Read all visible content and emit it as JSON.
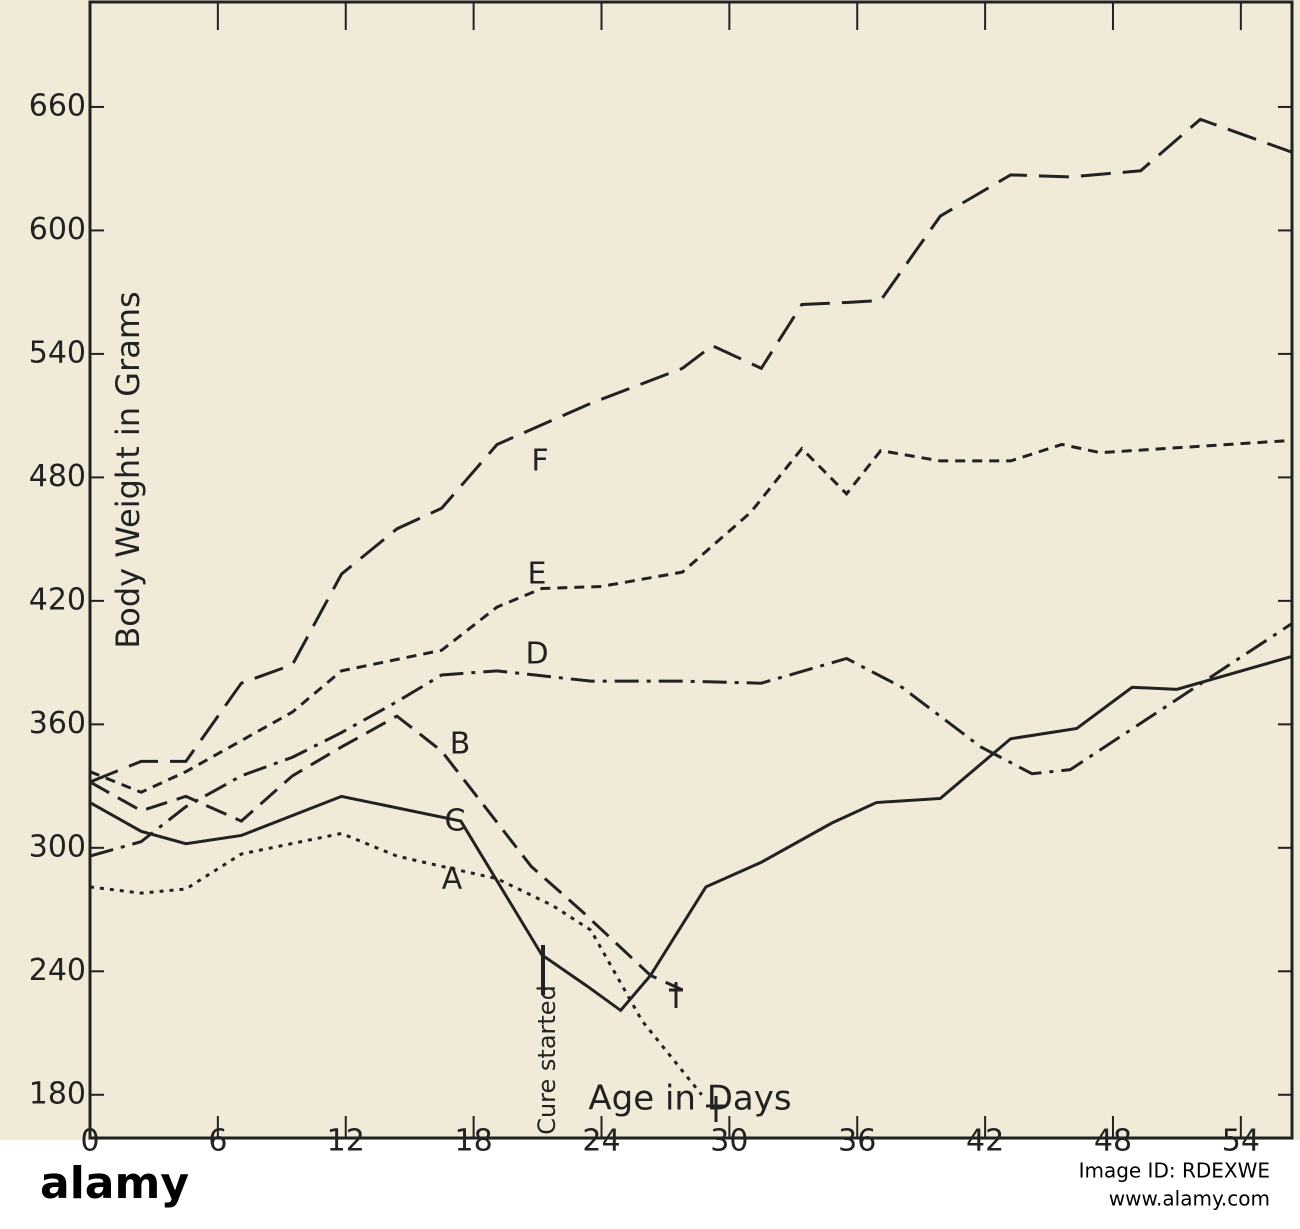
{
  "chart_data": {
    "type": "line",
    "x_label": "Age in Days",
    "y_label": "Body Weight in Grams",
    "annotation": "Cure started",
    "xlim": [
      0,
      56.4
    ],
    "ylim": [
      159,
      711
    ],
    "xticks": [
      0,
      6,
      12,
      18,
      24,
      30,
      36,
      42,
      48,
      54
    ],
    "yticks": [
      180,
      240,
      300,
      360,
      420,
      480,
      540,
      600,
      660
    ],
    "series": [
      {
        "name": "A",
        "color": "#222222",
        "dash": "4,6",
        "x": [
          0,
          2.4,
          4.5,
          7.1,
          11.8,
          14.4,
          16.5,
          19.1,
          21.7,
          23.5,
          25.9,
          28.7
        ],
        "values": [
          281,
          278,
          280,
          297,
          307,
          296,
          291,
          285,
          272,
          260,
          216,
          180
        ]
      },
      {
        "name": "B",
        "color": "#222222",
        "dash": "22,10",
        "x": [
          0,
          2.4,
          4.5,
          7.1,
          9.5,
          11.8,
          14.4,
          16.5,
          20.7,
          23.1,
          26.3,
          27.8
        ],
        "values": [
          332,
          318,
          325,
          313,
          335,
          349,
          364,
          347,
          291,
          269,
          238,
          231
        ]
      },
      {
        "name": "C",
        "color": "#222222",
        "dash": "none",
        "x": [
          0,
          2.4,
          4.5,
          7.1,
          11.8,
          17.4,
          21.2,
          23.3,
          24.9,
          26.3,
          28.9,
          31.5,
          34.8,
          36.9,
          39.9,
          43.2,
          46.3,
          48.9,
          51,
          56.4
        ],
        "values": [
          322,
          308,
          302,
          306,
          325,
          313,
          248,
          233,
          221,
          238,
          281,
          293,
          312,
          322,
          324,
          353,
          358,
          378,
          377,
          393
        ]
      },
      {
        "name": "D",
        "color": "#222222",
        "dash": "24,8,4,8",
        "x": [
          0,
          2.4,
          4.5,
          7.1,
          9.5,
          11.8,
          14.4,
          16.5,
          19.1,
          23.5,
          27.8,
          31.5,
          35.5,
          38.1,
          41.8,
          44.2,
          46,
          56.4
        ],
        "values": [
          296,
          303,
          320,
          335,
          344,
          356,
          371,
          384,
          386,
          381,
          381,
          380,
          392,
          378,
          349,
          336,
          338,
          409
        ]
      },
      {
        "name": "E",
        "color": "#222222",
        "dash": "10,7",
        "x": [
          0,
          2.4,
          4.5,
          9.5,
          11.8,
          16.5,
          19.1,
          21.2,
          24,
          27.8,
          31,
          33.4,
          35.5,
          37.1,
          39.9,
          43.2,
          45.6,
          47.4,
          56.4
        ],
        "values": [
          337,
          327,
          337,
          366,
          386,
          396,
          417,
          426,
          427,
          434,
          463,
          494,
          472,
          493,
          488,
          488,
          496,
          492,
          498
        ]
      },
      {
        "name": "F",
        "color": "#222222",
        "dash": "30,12",
        "x": [
          0,
          2.4,
          4.5,
          7.1,
          9.5,
          11.8,
          14.4,
          16.5,
          19.1,
          23.5,
          27.8,
          29.2,
          31.5,
          33.4,
          35.5,
          37.1,
          39.9,
          43.2,
          46,
          49.3,
          52.1,
          56.4
        ],
        "values": [
          332,
          342,
          342,
          380,
          389,
          433,
          455,
          465,
          496,
          516,
          533,
          544,
          533,
          564,
          565,
          566,
          607,
          627,
          626,
          629,
          654,
          638
        ]
      }
    ]
  },
  "footer": {
    "logo": "alamy",
    "image_id": "Image ID: RDEXWE",
    "site": "www.alamy.com"
  }
}
